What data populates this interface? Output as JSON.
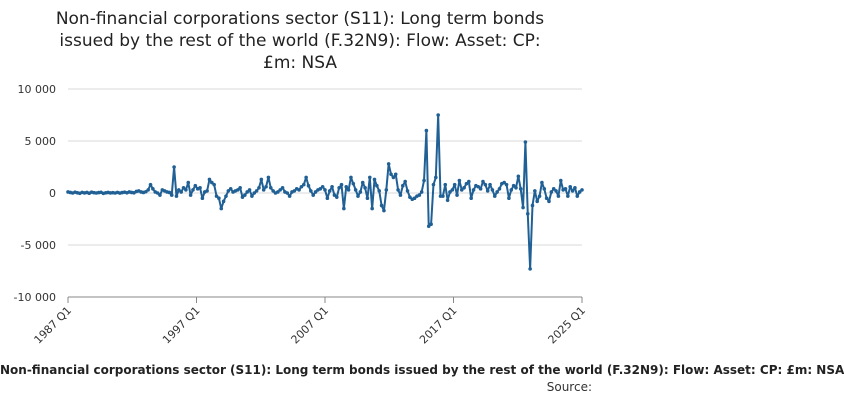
{
  "title_lines": [
    "Non-financial corporations sector (S11): Long term bonds",
    "issued by the rest of the world (F.32N9): Flow: Asset: CP:",
    "£m: NSA"
  ],
  "footer_text": "Non-financial corporations sector (S11): Long term bonds issued by the rest of the world (F.32N9): Flow: Asset: CP: £m: NSA",
  "source_label": "Source:",
  "colors": {
    "series": "#206095",
    "grid": "#d9d9d9",
    "axis": "#888888"
  },
  "chart_data": {
    "type": "line",
    "title": "Non-financial corporations sector (S11): Long term bonds issued by the rest of the world (F.32N9): Flow: Asset: CP: £m: NSA",
    "xlabel": "",
    "ylabel": "",
    "ylim": [
      -10000,
      10000
    ],
    "yticks": [
      10000,
      5000,
      0,
      -5000,
      -10000
    ],
    "ytick_labels": [
      "10 000",
      "5 000",
      "0",
      "-5 000",
      "-10 000"
    ],
    "xticks": [
      "1987 Q1",
      "1997 Q1",
      "2007 Q1",
      "2017 Q1",
      "2025 Q1"
    ],
    "grid": true,
    "legend": "none",
    "series": [
      {
        "values": [
          100,
          50,
          0,
          80,
          20,
          -30,
          60,
          10,
          50,
          -20,
          80,
          30,
          0,
          40,
          70,
          -40,
          20,
          50,
          10,
          30,
          0,
          60,
          -10,
          40,
          80,
          20,
          100,
          50,
          20,
          150,
          200,
          100,
          50,
          120,
          300,
          800,
          400,
          100,
          0,
          -200,
          300,
          200,
          100,
          50,
          -200,
          2500,
          -300,
          300,
          100,
          500,
          300,
          1000,
          -200,
          300,
          700,
          400,
          500,
          -500,
          100,
          200,
          1300,
          1000,
          800,
          -300,
          -500,
          -1500,
          -800,
          -300,
          200,
          400,
          100,
          200,
          300,
          500,
          -400,
          -200,
          100,
          300,
          -300,
          0,
          200,
          500,
          1300,
          300,
          600,
          1500,
          500,
          200,
          0,
          100,
          300,
          500,
          100,
          0,
          -300,
          100,
          200,
          400,
          300,
          600,
          800,
          1500,
          700,
          200,
          -200,
          100,
          300,
          400,
          600,
          300,
          -500,
          200,
          600,
          -200,
          -400,
          500,
          800,
          -1500,
          600,
          300,
          1500,
          900,
          300,
          -300,
          100,
          1000,
          500,
          -500,
          1500,
          -1500,
          1300,
          700,
          200,
          -1200,
          -1700,
          300,
          2800,
          1800,
          1500,
          1800,
          300,
          -200,
          700,
          1100,
          200,
          -400,
          -600,
          -500,
          -300,
          -200,
          100,
          1200,
          6000,
          -3200,
          -3000,
          800,
          1500,
          7500,
          -300,
          -300,
          800,
          -700,
          100,
          300,
          800,
          -200,
          1200,
          300,
          500,
          900,
          1100,
          -500,
          300,
          700,
          600,
          400,
          1100,
          800,
          200,
          800,
          300,
          -300,
          100,
          400,
          900,
          1000,
          800,
          -500,
          300,
          700,
          500,
          1600,
          400,
          -1400,
          4900,
          -2000,
          -7300,
          -1200,
          200,
          -800,
          -300,
          1000,
          400,
          -500,
          -800,
          100,
          400,
          200,
          -300,
          1200,
          300,
          400,
          -300,
          600,
          200,
          500,
          -300,
          100,
          300
        ]
      }
    ]
  }
}
